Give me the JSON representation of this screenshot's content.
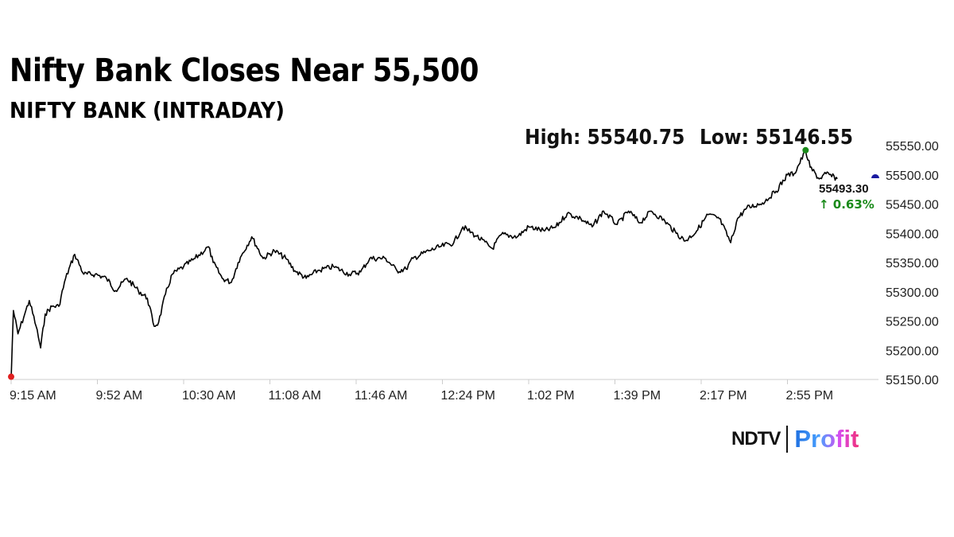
{
  "header": {
    "title": "Nifty Bank Closes Near 55,500",
    "subtitle": "NIFTY BANK (INTRADAY)",
    "high_label": "High: 55540.75",
    "low_label": "Low: 55146.55"
  },
  "logo": {
    "brand": "NDTV",
    "product": "Profit"
  },
  "chart_data": {
    "type": "line",
    "title": "NIFTY BANK (INTRADAY)",
    "ylim": [
      55150,
      55550
    ],
    "y_ticks": [
      "55150.00",
      "55200.00",
      "55250.00",
      "55300.00",
      "55350.00",
      "55400.00",
      "55450.00",
      "55500.00",
      "55550.00"
    ],
    "x_ticks": [
      "9:15 AM",
      "9:52 AM",
      "10:30 AM",
      "11:08 AM",
      "11:46 AM",
      "12:24 PM",
      "1:02 PM",
      "1:39 PM",
      "2:17 PM",
      "2:55 PM"
    ],
    "high": 55540.75,
    "low": 55146.55,
    "last_value_label": "55493.30",
    "change_label": "↑ 0.63%",
    "colors": {
      "line": "#000000",
      "high_marker": "#1a8a1a",
      "low_marker": "#e02020",
      "last_marker": "#1a1aa0",
      "change": "#1a8a1a"
    },
    "series": [
      {
        "points": [
          [
            "09:15",
            55150
          ],
          [
            "09:16",
            55268
          ],
          [
            "09:18",
            55228
          ],
          [
            "09:21",
            55262
          ],
          [
            "09:23",
            55285
          ],
          [
            "09:26",
            55241
          ],
          [
            "09:28",
            55204
          ],
          [
            "09:30",
            55262
          ],
          [
            "09:33",
            55275
          ],
          [
            "09:36",
            55275
          ],
          [
            "09:39",
            55323
          ],
          [
            "09:43",
            55364
          ],
          [
            "09:47",
            55330
          ],
          [
            "09:52",
            55330
          ],
          [
            "09:57",
            55323
          ],
          [
            "10:01",
            55302
          ],
          [
            "10:06",
            55323
          ],
          [
            "10:11",
            55302
          ],
          [
            "10:15",
            55289
          ],
          [
            "10:18",
            55241
          ],
          [
            "10:20",
            55248
          ],
          [
            "10:23",
            55296
          ],
          [
            "10:26",
            55330
          ],
          [
            "10:31",
            55343
          ],
          [
            "10:36",
            55357
          ],
          [
            "10:42",
            55377
          ],
          [
            "10:44",
            55350
          ],
          [
            "10:48",
            55323
          ],
          [
            "10:52",
            55316
          ],
          [
            "10:55",
            55350
          ],
          [
            "10:57",
            55366
          ],
          [
            "11:01",
            55394
          ],
          [
            "11:06",
            55357
          ],
          [
            "11:11",
            55370
          ],
          [
            "11:16",
            55357
          ],
          [
            "11:20",
            55336
          ],
          [
            "11:25",
            55323
          ],
          [
            "11:30",
            55336
          ],
          [
            "11:37",
            55343
          ],
          [
            "11:44",
            55330
          ],
          [
            "11:49",
            55334
          ],
          [
            "11:53",
            55357
          ],
          [
            "12:00",
            55357
          ],
          [
            "12:05",
            55336
          ],
          [
            "12:09",
            55339
          ],
          [
            "12:12",
            55357
          ],
          [
            "12:19",
            55370
          ],
          [
            "12:24",
            55377
          ],
          [
            "12:30",
            55384
          ],
          [
            "12:34",
            55411
          ],
          [
            "12:40",
            55395
          ],
          [
            "12:47",
            55374
          ],
          [
            "12:51",
            55398
          ],
          [
            "12:58",
            55394
          ],
          [
            "13:03",
            55411
          ],
          [
            "13:10",
            55404
          ],
          [
            "13:15",
            55411
          ],
          [
            "13:20",
            55434
          ],
          [
            "13:26",
            55425
          ],
          [
            "13:31",
            55411
          ],
          [
            "13:36",
            55438
          ],
          [
            "13:42",
            55415
          ],
          [
            "13:47",
            55438
          ],
          [
            "13:52",
            55418
          ],
          [
            "13:57",
            55438
          ],
          [
            "14:03",
            55421
          ],
          [
            "14:08",
            55400
          ],
          [
            "14:12",
            55387
          ],
          [
            "14:17",
            55404
          ],
          [
            "14:22",
            55432
          ],
          [
            "14:27",
            55425
          ],
          [
            "14:32",
            55384
          ],
          [
            "14:35",
            55425
          ],
          [
            "14:39",
            55443
          ],
          [
            "14:46",
            55452
          ],
          [
            "14:52",
            55472
          ],
          [
            "14:57",
            55500
          ],
          [
            "15:00",
            55502
          ],
          [
            "15:05",
            55540.75
          ],
          [
            "15:07",
            55513
          ],
          [
            "15:11",
            55493
          ],
          [
            "15:14",
            55502
          ],
          [
            "15:19",
            55493.3
          ]
        ]
      }
    ]
  }
}
